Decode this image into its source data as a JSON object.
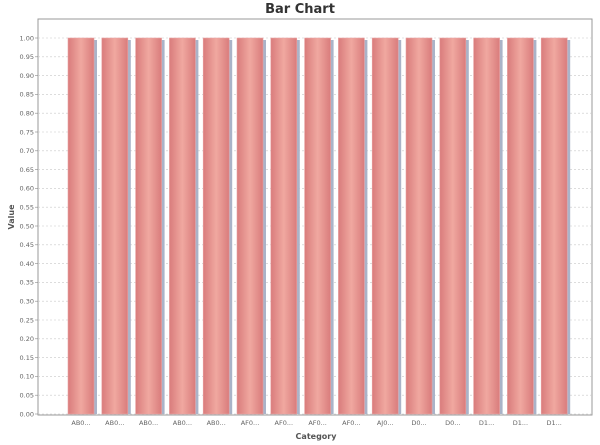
{
  "chart_data": {
    "type": "bar",
    "title": "Bar Chart",
    "xlabel": "Category",
    "ylabel": "Value",
    "ylim": [
      0,
      1
    ],
    "yticks": [
      "0.00",
      "0.05",
      "0.10",
      "0.15",
      "0.20",
      "0.25",
      "0.30",
      "0.35",
      "0.40",
      "0.45",
      "0.50",
      "0.55",
      "0.60",
      "0.65",
      "0.70",
      "0.75",
      "0.80",
      "0.85",
      "0.90",
      "0.95",
      "1.00"
    ],
    "categories": [
      "AB0...",
      "AB0...",
      "AB0...",
      "AB0...",
      "AB0...",
      "AF0...",
      "AF0...",
      "AF0...",
      "AF0...",
      "AJ0...",
      "D0...",
      "D0...",
      "D1...",
      "D1...",
      "D1..."
    ],
    "values": [
      1,
      1,
      1,
      1,
      1,
      1,
      1,
      1,
      1,
      1,
      1,
      1,
      1,
      1,
      1
    ],
    "grid": true,
    "colors": {
      "bar": "#e88b8b",
      "bar_highlight": "#f2b0a8",
      "bar_shadow": "#aab3c8",
      "grid": "#c8c8c8",
      "plot_border": "#999999"
    }
  }
}
